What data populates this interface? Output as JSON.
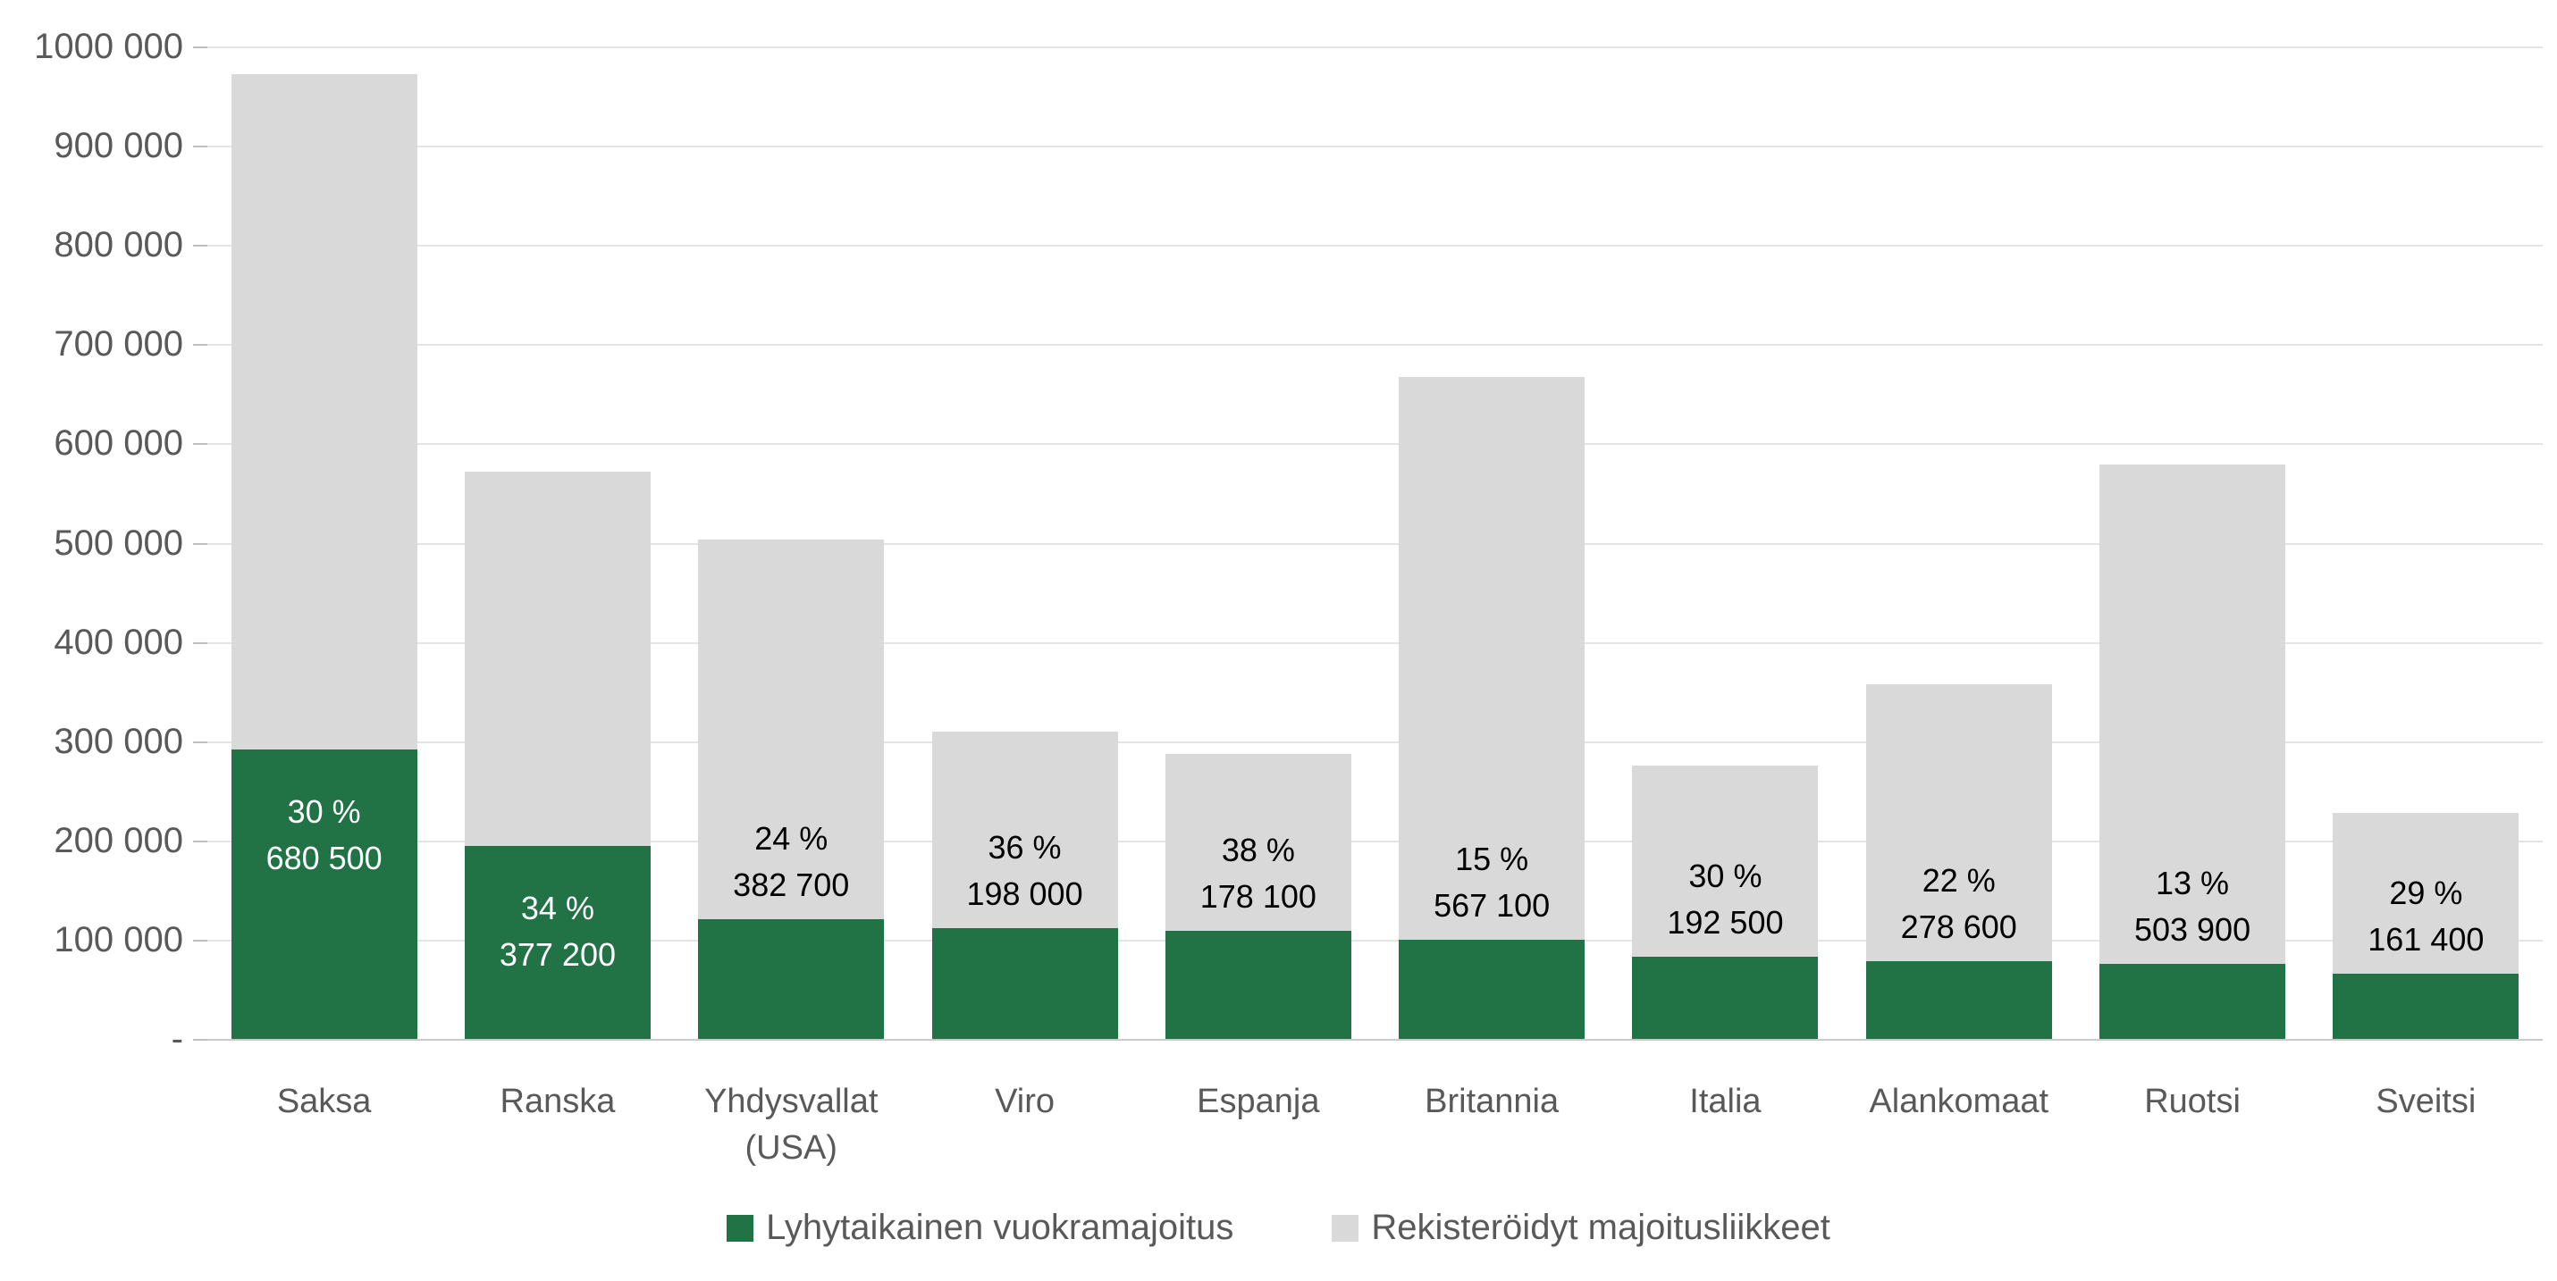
{
  "chart_data": {
    "type": "bar",
    "stacked": true,
    "title": "",
    "xlabel": "",
    "ylabel": "",
    "grid": true,
    "legend_position": "bottom-center",
    "categories": [
      "Saksa",
      "Ranska",
      "Yhdysvallat (USA)",
      "Viro",
      "Espanja",
      "Britannia",
      "Italia",
      "Alankomaat",
      "Ruotsi",
      "Sveitsi"
    ],
    "series": [
      {
        "name": "Lyhytaikainen vuokramajoitus",
        "color": "#217346",
        "values": [
          291600,
          194300,
          120900,
          111400,
          109200,
          100100,
          82500,
          78600,
          75300,
          65900
        ]
      },
      {
        "name": "Rekisteröidyt majoitusliikkeet",
        "color": "#D9D9D9",
        "values": [
          680500,
          377200,
          382700,
          198000,
          178100,
          567100,
          192500,
          278600,
          503900,
          161400
        ]
      }
    ],
    "bar_labels": [
      {
        "pct": "30 %",
        "value": "680 500",
        "placement": "inside-green",
        "text_color": "#FFFFFF"
      },
      {
        "pct": "34 %",
        "value": "377 200",
        "placement": "inside-green",
        "text_color": "#FFFFFF"
      },
      {
        "pct": "24 %",
        "value": "382 700",
        "placement": "above-green",
        "text_color": "#000000"
      },
      {
        "pct": "36 %",
        "value": "198 000",
        "placement": "above-green",
        "text_color": "#000000"
      },
      {
        "pct": "38 %",
        "value": "178 100",
        "placement": "above-green",
        "text_color": "#000000"
      },
      {
        "pct": "15 %",
        "value": "567 100",
        "placement": "above-green",
        "text_color": "#000000"
      },
      {
        "pct": "30 %",
        "value": "192 500",
        "placement": "above-green",
        "text_color": "#000000"
      },
      {
        "pct": "22 %",
        "value": "278 600",
        "placement": "above-green",
        "text_color": "#000000"
      },
      {
        "pct": "13 %",
        "value": "503 900",
        "placement": "above-green",
        "text_color": "#000000"
      },
      {
        "pct": "29 %",
        "value": "161 400",
        "placement": "above-green",
        "text_color": "#000000"
      }
    ],
    "y_axis": {
      "min": 0,
      "max": 1000000,
      "step": 100000,
      "ticks": [
        "1000 000",
        "900 000",
        "800 000",
        "700 000",
        "600 000",
        "500 000",
        "400 000",
        "300 000",
        "200 000",
        "100 000",
        "-"
      ]
    }
  },
  "colors": {
    "green_series": "#217346",
    "gray_series": "#D9D9D9",
    "axis_text": "#595959",
    "gridline": "#E4E4E4",
    "baseline": "#C9C9C9",
    "background": "#FFFFFF"
  }
}
